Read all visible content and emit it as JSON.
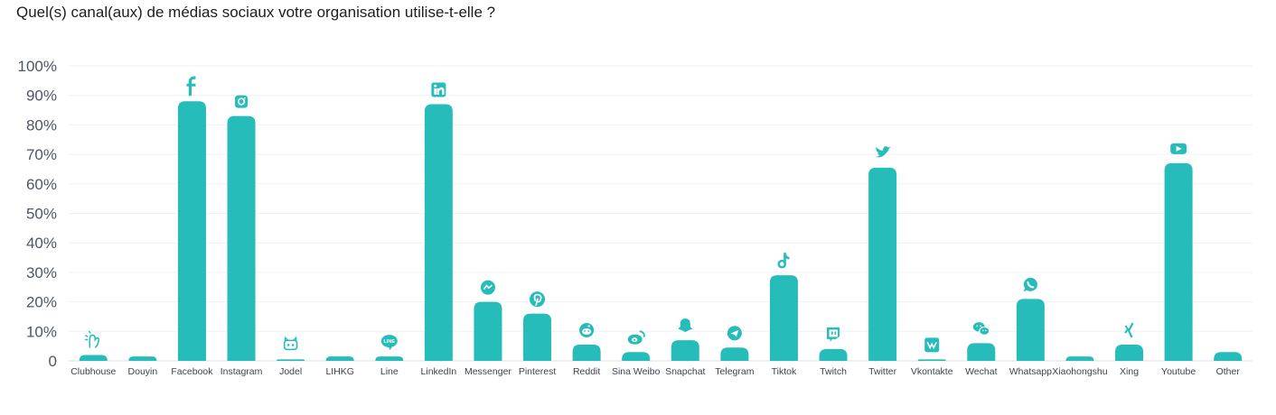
{
  "chart_data": {
    "type": "bar",
    "title": "Quel(s) canal(aux) de médias sociaux votre organisation utilise-t-elle ?",
    "xlabel": "",
    "ylabel": "",
    "ylim": [
      0,
      100
    ],
    "yticks": [
      "0",
      "10%",
      "20%",
      "30%",
      "40%",
      "50%",
      "60%",
      "70%",
      "80%",
      "90%",
      "100%"
    ],
    "grid": true,
    "bar_color": "#26bcb9",
    "categories": [
      "Clubhouse",
      "Douyin",
      "Facebook",
      "Instagram",
      "Jodel",
      "LIHKG",
      "Line",
      "LinkedIn",
      "Messenger",
      "Pinterest",
      "Reddit",
      "Sina Weibo",
      "Snapchat",
      "Telegram",
      "Tiktok",
      "Twitch",
      "Twitter",
      "Vkontakte",
      "Wechat",
      "Whatsapp",
      "Xiaohongshu",
      "Xing",
      "Youtube",
      "Other"
    ],
    "values": [
      2,
      1.5,
      88,
      83,
      0.5,
      1.5,
      1.5,
      87,
      20,
      16,
      5.5,
      3,
      7,
      4.5,
      29,
      4,
      65.5,
      0.5,
      6,
      21,
      1.5,
      5.5,
      67,
      3
    ],
    "icons": [
      "clubhouse-icon",
      "",
      "facebook-icon",
      "instagram-icon",
      "jodel-icon",
      "",
      "line-icon",
      "linkedin-icon",
      "messenger-icon",
      "pinterest-icon",
      "reddit-icon",
      "sina-weibo-icon",
      "snapchat-icon",
      "telegram-icon",
      "tiktok-icon",
      "twitch-icon",
      "twitter-icon",
      "vkontakte-icon",
      "wechat-icon",
      "whatsapp-icon",
      "",
      "xing-icon",
      "youtube-icon",
      ""
    ]
  }
}
